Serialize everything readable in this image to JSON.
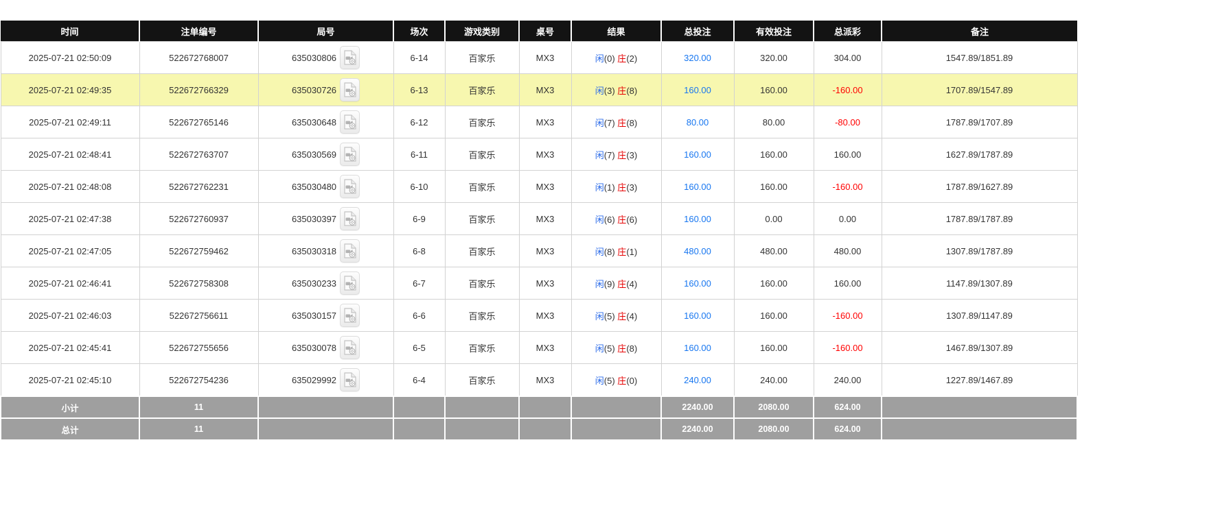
{
  "colors": {
    "header_bg": "#131313",
    "footer_bg": "#9f9f9f",
    "highlight_row_yellow": "#f7f7af",
    "bet_amount_blue": "#1776f0",
    "player_label_blue": "#2a6ae8",
    "banker_label_red": "#e60000",
    "negative_payout_red": "#ff0000"
  },
  "icons": {
    "round_replay": "video-replay-icon"
  },
  "table": {
    "columns": [
      {
        "key": "time",
        "label": "时间"
      },
      {
        "key": "bet_no",
        "label": "注单编号"
      },
      {
        "key": "round_no",
        "label": "局号"
      },
      {
        "key": "session",
        "label": "场次"
      },
      {
        "key": "game_type",
        "label": "游戏类别"
      },
      {
        "key": "table_no",
        "label": "桌号"
      },
      {
        "key": "result",
        "label": "结果"
      },
      {
        "key": "total_bet",
        "label": "总投注"
      },
      {
        "key": "valid_bet",
        "label": "有效投注"
      },
      {
        "key": "payout",
        "label": "总派彩"
      },
      {
        "key": "remark",
        "label": "备注"
      }
    ],
    "result_labels": {
      "player": "闲",
      "banker": "庄"
    },
    "rows": [
      {
        "time": "2025-07-21 02:50:09",
        "bet_no": "522672768007",
        "round_no": "635030806",
        "session": "6-14",
        "game_type": "百家乐",
        "table_no": "MX3",
        "player_score": "0",
        "banker_score": "2",
        "total_bet": "320.00",
        "valid_bet": "320.00",
        "payout": "304.00",
        "remark": "1547.89/1851.89",
        "highlighted": false
      },
      {
        "time": "2025-07-21 02:49:35",
        "bet_no": "522672766329",
        "round_no": "635030726",
        "session": "6-13",
        "game_type": "百家乐",
        "table_no": "MX3",
        "player_score": "3",
        "banker_score": "8",
        "total_bet": "160.00",
        "valid_bet": "160.00",
        "payout": "-160.00",
        "remark": "1707.89/1547.89",
        "highlighted": true
      },
      {
        "time": "2025-07-21 02:49:11",
        "bet_no": "522672765146",
        "round_no": "635030648",
        "session": "6-12",
        "game_type": "百家乐",
        "table_no": "MX3",
        "player_score": "7",
        "banker_score": "8",
        "total_bet": "80.00",
        "valid_bet": "80.00",
        "payout": "-80.00",
        "remark": "1787.89/1707.89",
        "highlighted": false
      },
      {
        "time": "2025-07-21 02:48:41",
        "bet_no": "522672763707",
        "round_no": "635030569",
        "session": "6-11",
        "game_type": "百家乐",
        "table_no": "MX3",
        "player_score": "7",
        "banker_score": "3",
        "total_bet": "160.00",
        "valid_bet": "160.00",
        "payout": "160.00",
        "remark": "1627.89/1787.89",
        "highlighted": false
      },
      {
        "time": "2025-07-21 02:48:08",
        "bet_no": "522672762231",
        "round_no": "635030480",
        "session": "6-10",
        "game_type": "百家乐",
        "table_no": "MX3",
        "player_score": "1",
        "banker_score": "3",
        "total_bet": "160.00",
        "valid_bet": "160.00",
        "payout": "-160.00",
        "remark": "1787.89/1627.89",
        "highlighted": false
      },
      {
        "time": "2025-07-21 02:47:38",
        "bet_no": "522672760937",
        "round_no": "635030397",
        "session": "6-9",
        "game_type": "百家乐",
        "table_no": "MX3",
        "player_score": "6",
        "banker_score": "6",
        "total_bet": "160.00",
        "valid_bet": "0.00",
        "payout": "0.00",
        "remark": "1787.89/1787.89",
        "highlighted": false
      },
      {
        "time": "2025-07-21 02:47:05",
        "bet_no": "522672759462",
        "round_no": "635030318",
        "session": "6-8",
        "game_type": "百家乐",
        "table_no": "MX3",
        "player_score": "8",
        "banker_score": "1",
        "total_bet": "480.00",
        "valid_bet": "480.00",
        "payout": "480.00",
        "remark": "1307.89/1787.89",
        "highlighted": false
      },
      {
        "time": "2025-07-21 02:46:41",
        "bet_no": "522672758308",
        "round_no": "635030233",
        "session": "6-7",
        "game_type": "百家乐",
        "table_no": "MX3",
        "player_score": "9",
        "banker_score": "4",
        "total_bet": "160.00",
        "valid_bet": "160.00",
        "payout": "160.00",
        "remark": "1147.89/1307.89",
        "highlighted": false
      },
      {
        "time": "2025-07-21 02:46:03",
        "bet_no": "522672756611",
        "round_no": "635030157",
        "session": "6-6",
        "game_type": "百家乐",
        "table_no": "MX3",
        "player_score": "5",
        "banker_score": "4",
        "total_bet": "160.00",
        "valid_bet": "160.00",
        "payout": "-160.00",
        "remark": "1307.89/1147.89",
        "highlighted": false
      },
      {
        "time": "2025-07-21 02:45:41",
        "bet_no": "522672755656",
        "round_no": "635030078",
        "session": "6-5",
        "game_type": "百家乐",
        "table_no": "MX3",
        "player_score": "5",
        "banker_score": "8",
        "total_bet": "160.00",
        "valid_bet": "160.00",
        "payout": "-160.00",
        "remark": "1467.89/1307.89",
        "highlighted": false
      },
      {
        "time": "2025-07-21 02:45:10",
        "bet_no": "522672754236",
        "round_no": "635029992",
        "session": "6-4",
        "game_type": "百家乐",
        "table_no": "MX3",
        "player_score": "5",
        "banker_score": "0",
        "total_bet": "240.00",
        "valid_bet": "240.00",
        "payout": "240.00",
        "remark": "1227.89/1467.89",
        "highlighted": false
      }
    ],
    "footer_rows": [
      {
        "label": "小计",
        "count": "11",
        "total_bet": "2240.00",
        "valid_bet": "2080.00",
        "payout": "624.00"
      },
      {
        "label": "总计",
        "count": "11",
        "total_bet": "2240.00",
        "valid_bet": "2080.00",
        "payout": "624.00"
      }
    ]
  }
}
